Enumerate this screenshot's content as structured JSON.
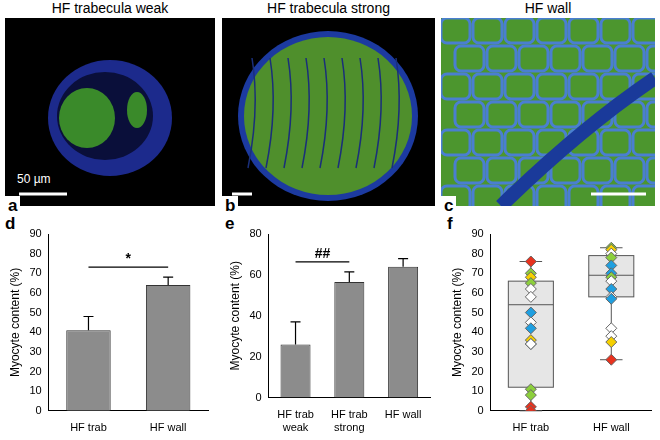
{
  "panels": [
    {
      "panel": "a",
      "title": "HF trabecula weak",
      "scale_bar": "50 µm"
    },
    {
      "panel": "b",
      "title": "HF trabecula strong"
    },
    {
      "panel": "c",
      "title": "HF wall"
    }
  ],
  "chart_data": [
    {
      "panel": "d",
      "type": "bar",
      "categories": [
        "HF trab",
        "HF wall"
      ],
      "values": [
        41,
        64
      ],
      "errors": [
        7,
        4
      ],
      "y_label": "Myocyte content (%)",
      "ylim": [
        0,
        90
      ],
      "yticks": [
        0,
        10,
        20,
        30,
        40,
        50,
        60,
        70,
        80,
        90
      ],
      "color": "#8c8c8c",
      "grid": false,
      "annotations": [
        {
          "text": "*",
          "between": [
            "HF trab",
            "HF wall"
          ]
        }
      ]
    },
    {
      "panel": "e",
      "type": "bar",
      "categories": [
        "HF trab weak",
        "HF trab strong",
        "HF wall"
      ],
      "values": [
        26,
        56.5,
        64
      ],
      "errors": [
        11,
        5,
        4
      ],
      "y_label": "Myocyte content (%)",
      "ylim": [
        0,
        80
      ],
      "yticks": [
        0,
        20,
        40,
        60,
        80
      ],
      "color": "#8c8c8c",
      "grid": false,
      "annotations": [
        {
          "text": "##",
          "between": [
            "HF trab weak",
            "HF trab strong"
          ]
        }
      ]
    },
    {
      "panel": "f",
      "type": "box",
      "categories": [
        "HF trab",
        "HF wall"
      ],
      "boxes": [
        {
          "min": 0,
          "q1": 12,
          "median": 54,
          "q3": 66,
          "max": 76
        },
        {
          "min": 26,
          "q1": 58,
          "median": 69,
          "q3": 79,
          "max": 83
        }
      ],
      "points": [
        {
          "values": [
            76,
            70,
            68,
            65,
            62,
            58,
            50,
            45,
            42,
            36,
            34,
            34,
            11,
            8,
            2,
            0
          ],
          "colors": [
            "#e8321e",
            "#8ccf3c",
            "#f5d000",
            "#8ccf3c",
            "#ffffff",
            "#ffffff",
            "#1f9fe0",
            "#ffffff",
            "#1f9fe0",
            "#f5d000",
            "#1f9fe0",
            "#ffffff",
            "#8ccf3c",
            "#8ccf3c",
            "#e8321e",
            "#e8321e"
          ]
        },
        {
          "values": [
            83,
            82,
            80,
            78,
            74,
            70,
            68,
            66,
            62,
            58,
            57,
            42,
            38,
            35,
            26
          ],
          "colors": [
            "#8ccf3c",
            "#f5d000",
            "#ffffff",
            "#8ccf3c",
            "#1f9fe0",
            "#1f9fe0",
            "#8ccf3c",
            "#ffffff",
            "#1f9fe0",
            "#ffffff",
            "#1f9fe0",
            "#ffffff",
            "#ffffff",
            "#f5d000",
            "#e8321e"
          ]
        }
      ],
      "marker": "diamond",
      "y_label": "Myocyte content (%)",
      "ylim": [
        0,
        90
      ],
      "yticks": [
        0,
        10,
        20,
        30,
        40,
        50,
        60,
        70,
        80,
        90
      ],
      "grid": false
    }
  ]
}
